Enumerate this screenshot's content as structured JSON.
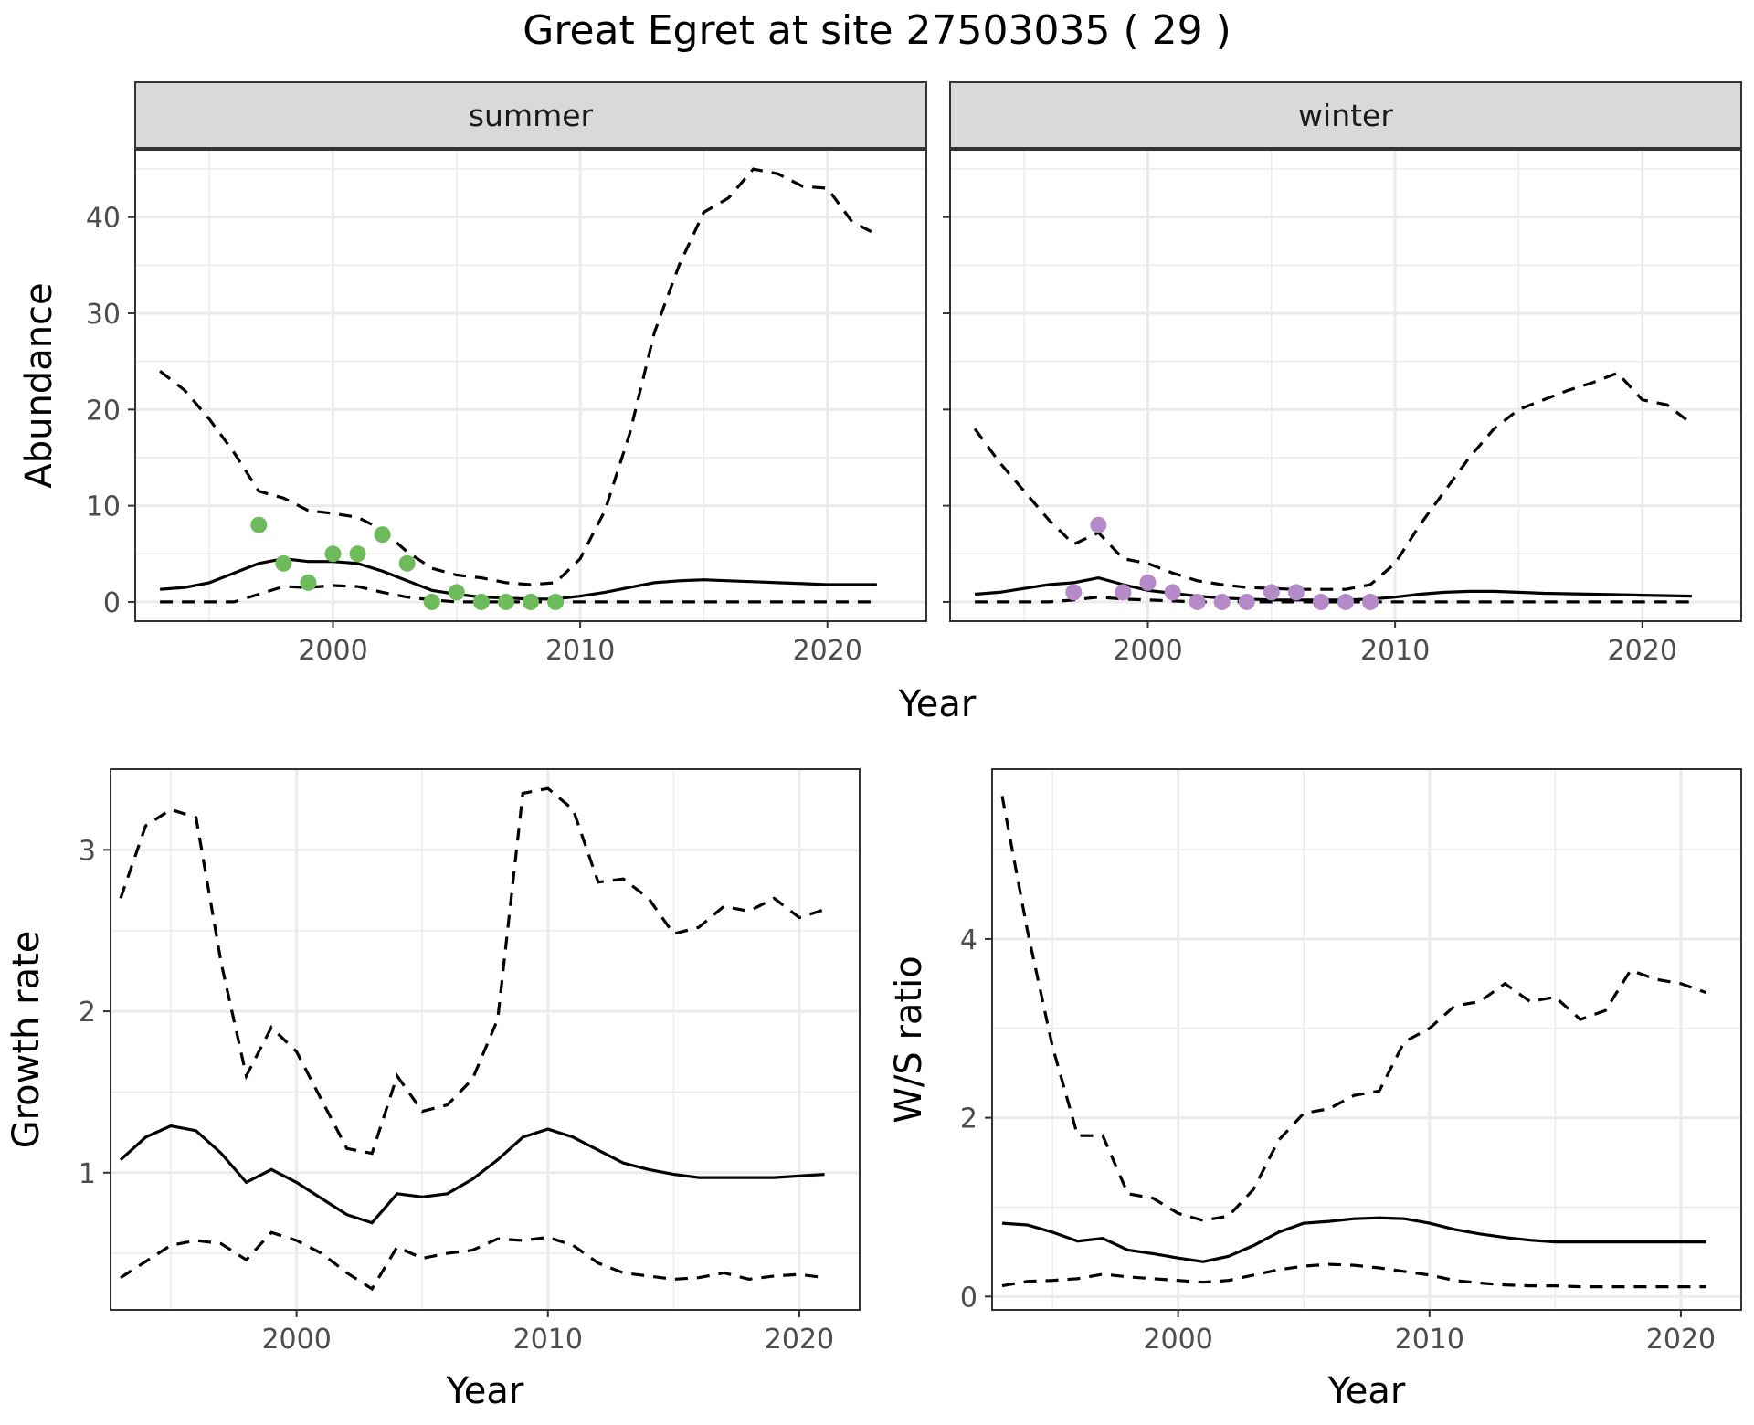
{
  "figure": {
    "title": "Great Egret at site 27503035 ( 29 )"
  },
  "colors": {
    "summer_points": "#6dbb5a",
    "winter_points": "#b48ac8",
    "line": "#000000",
    "strip": "#d9d9d9",
    "grid": "#ebebeb"
  },
  "chart_data": [
    {
      "type": "line",
      "facet": "summer",
      "xlabel": "Year",
      "ylabel": "Abundance",
      "xlim": [
        1992,
        2024
      ],
      "ylim": [
        -2,
        47
      ],
      "xticks": [
        2000,
        2010,
        2020
      ],
      "yticks": [
        0,
        10,
        20,
        30,
        40
      ],
      "x": [
        1993,
        1994,
        1995,
        1996,
        1997,
        1998,
        1999,
        2000,
        2001,
        2002,
        2003,
        2004,
        2005,
        2006,
        2007,
        2008,
        2009,
        2010,
        2011,
        2012,
        2013,
        2014,
        2015,
        2016,
        2017,
        2018,
        2019,
        2020,
        2021,
        2022
      ],
      "series": [
        {
          "role": "estimate",
          "style": "solid",
          "values": [
            1.3,
            1.5,
            2.0,
            3.0,
            4.0,
            4.5,
            4.2,
            4.2,
            4.0,
            3.2,
            2.2,
            1.2,
            0.8,
            0.5,
            0.4,
            0.3,
            0.3,
            0.6,
            1.0,
            1.5,
            2.0,
            2.2,
            2.3,
            2.2,
            2.1,
            2.0,
            1.9,
            1.8,
            1.8,
            1.8
          ]
        },
        {
          "role": "upper bound",
          "style": "dashed",
          "values": [
            24,
            22,
            19,
            15.5,
            11.5,
            10.8,
            9.5,
            9.2,
            8.8,
            7.5,
            5.2,
            3.5,
            2.8,
            2.5,
            2.0,
            1.8,
            2.0,
            4.5,
            9.5,
            17.5,
            28.0,
            35.0,
            40.5,
            42.0,
            45.0,
            44.5,
            43.2,
            43.0,
            39.5,
            38.2
          ]
        },
        {
          "role": "lower bound",
          "style": "dashed",
          "values": [
            0,
            0,
            0,
            0,
            0.8,
            1.6,
            1.5,
            1.7,
            1.6,
            1.0,
            0.5,
            0.2,
            0,
            0,
            0,
            0,
            0,
            0,
            0,
            0,
            0,
            0,
            0,
            0,
            0,
            0,
            0,
            0,
            0,
            0
          ]
        }
      ],
      "points": {
        "x": [
          1997,
          1998,
          1999,
          2000,
          2001,
          2002,
          2003,
          2004,
          2005,
          2006,
          2007,
          2008,
          2009
        ],
        "y": [
          8,
          4,
          2,
          5,
          5,
          7,
          4,
          0,
          1,
          0,
          0,
          0,
          0
        ]
      }
    },
    {
      "type": "line",
      "facet": "winter",
      "xlabel": "Year",
      "ylabel": "Abundance",
      "xlim": [
        1992,
        2024
      ],
      "ylim": [
        -2,
        47
      ],
      "xticks": [
        2000,
        2010,
        2020
      ],
      "yticks": [
        0,
        10,
        20,
        30,
        40
      ],
      "x": [
        1993,
        1994,
        1995,
        1996,
        1997,
        1998,
        1999,
        2000,
        2001,
        2002,
        2003,
        2004,
        2005,
        2006,
        2007,
        2008,
        2009,
        2010,
        2011,
        2012,
        2013,
        2014,
        2015,
        2016,
        2017,
        2018,
        2019,
        2020,
        2021,
        2022
      ],
      "series": [
        {
          "role": "estimate",
          "style": "solid",
          "values": [
            0.8,
            1.0,
            1.4,
            1.8,
            2.0,
            2.5,
            1.8,
            1.2,
            0.9,
            0.6,
            0.4,
            0.3,
            0.2,
            0.2,
            0.2,
            0.2,
            0.3,
            0.5,
            0.8,
            1.0,
            1.1,
            1.1,
            1.0,
            0.9,
            0.85,
            0.8,
            0.75,
            0.7,
            0.65,
            0.6
          ]
        },
        {
          "role": "upper bound",
          "style": "dashed",
          "values": [
            18,
            14.5,
            11.5,
            8.5,
            6.0,
            7.2,
            4.5,
            4.0,
            3.0,
            2.2,
            1.8,
            1.5,
            1.4,
            1.3,
            1.3,
            1.3,
            1.8,
            4.0,
            8.0,
            11.5,
            15.0,
            18.0,
            20.0,
            21.0,
            22.0,
            22.8,
            23.8,
            21.0,
            20.5,
            18.5
          ]
        },
        {
          "role": "lower bound",
          "style": "dashed",
          "values": [
            0,
            0,
            0,
            0,
            0.2,
            0.5,
            0.3,
            0.2,
            0.1,
            0,
            0,
            0,
            0,
            0,
            0,
            0,
            0,
            0,
            0,
            0,
            0,
            0,
            0,
            0,
            0,
            0,
            0,
            0,
            0,
            0
          ]
        }
      ],
      "points": {
        "x": [
          1997,
          1998,
          1999,
          2000,
          2001,
          2002,
          2003,
          2004,
          2005,
          2006,
          2007,
          2008,
          2009
        ],
        "y": [
          1,
          8,
          1,
          2,
          1,
          0,
          0,
          0,
          1,
          1,
          0,
          0,
          0
        ]
      }
    },
    {
      "type": "line",
      "xlabel": "Year",
      "ylabel": "Growth rate",
      "xlim": [
        1992.6,
        2022.4
      ],
      "ylim": [
        0.15,
        3.5
      ],
      "xticks": [
        2000,
        2010,
        2020
      ],
      "yticks": [
        1,
        2,
        3
      ],
      "x": [
        1993,
        1994,
        1995,
        1996,
        1997,
        1998,
        1999,
        2000,
        2001,
        2002,
        2003,
        2004,
        2005,
        2006,
        2007,
        2008,
        2009,
        2010,
        2011,
        2012,
        2013,
        2014,
        2015,
        2016,
        2017,
        2018,
        2019,
        2020,
        2021
      ],
      "series": [
        {
          "role": "estimate",
          "style": "solid",
          "values": [
            1.08,
            1.22,
            1.29,
            1.26,
            1.12,
            0.94,
            1.02,
            0.94,
            0.84,
            0.74,
            0.69,
            0.87,
            0.85,
            0.87,
            0.96,
            1.08,
            1.22,
            1.27,
            1.22,
            1.14,
            1.06,
            1.02,
            0.99,
            0.97,
            0.97,
            0.97,
            0.97,
            0.98,
            0.99
          ]
        },
        {
          "role": "upper bound",
          "style": "dashed",
          "values": [
            2.7,
            3.15,
            3.25,
            3.2,
            2.3,
            1.6,
            1.9,
            1.75,
            1.45,
            1.15,
            1.12,
            1.6,
            1.38,
            1.42,
            1.58,
            1.95,
            3.35,
            3.38,
            3.25,
            2.8,
            2.82,
            2.7,
            2.48,
            2.52,
            2.65,
            2.62,
            2.7,
            2.58,
            2.63
          ]
        },
        {
          "role": "lower bound",
          "style": "dashed",
          "values": [
            0.35,
            0.45,
            0.55,
            0.58,
            0.56,
            0.46,
            0.63,
            0.58,
            0.5,
            0.38,
            0.28,
            0.54,
            0.47,
            0.5,
            0.52,
            0.59,
            0.58,
            0.6,
            0.55,
            0.44,
            0.38,
            0.36,
            0.34,
            0.35,
            0.38,
            0.34,
            0.36,
            0.37,
            0.35
          ]
        }
      ]
    },
    {
      "type": "line",
      "xlabel": "Year",
      "ylabel": "W/S ratio",
      "xlim": [
        1992.6,
        2022.4
      ],
      "ylim": [
        -0.15,
        5.9
      ],
      "xticks": [
        2000,
        2010,
        2020
      ],
      "yticks": [
        0,
        2,
        4
      ],
      "x": [
        1993,
        1994,
        1995,
        1996,
        1997,
        1998,
        1999,
        2000,
        2001,
        2002,
        2003,
        2004,
        2005,
        2006,
        2007,
        2008,
        2009,
        2010,
        2011,
        2012,
        2013,
        2014,
        2015,
        2016,
        2017,
        2018,
        2019,
        2020,
        2021
      ],
      "series": [
        {
          "role": "estimate",
          "style": "solid",
          "values": [
            0.82,
            0.8,
            0.72,
            0.62,
            0.65,
            0.52,
            0.48,
            0.43,
            0.39,
            0.45,
            0.57,
            0.72,
            0.82,
            0.84,
            0.87,
            0.88,
            0.87,
            0.82,
            0.75,
            0.7,
            0.66,
            0.63,
            0.61,
            0.61,
            0.61,
            0.61,
            0.61,
            0.61,
            0.61
          ]
        },
        {
          "role": "upper bound",
          "style": "dashed",
          "values": [
            5.6,
            4.1,
            2.8,
            1.8,
            1.8,
            1.15,
            1.1,
            0.93,
            0.85,
            0.9,
            1.2,
            1.75,
            2.05,
            2.1,
            2.25,
            2.3,
            2.85,
            3.0,
            3.25,
            3.3,
            3.5,
            3.3,
            3.35,
            3.1,
            3.2,
            3.65,
            3.55,
            3.5,
            3.4
          ]
        },
        {
          "role": "lower bound",
          "style": "dashed",
          "values": [
            0.12,
            0.17,
            0.18,
            0.2,
            0.25,
            0.22,
            0.2,
            0.18,
            0.16,
            0.18,
            0.24,
            0.3,
            0.34,
            0.36,
            0.35,
            0.32,
            0.28,
            0.24,
            0.18,
            0.15,
            0.13,
            0.12,
            0.12,
            0.11,
            0.11,
            0.11,
            0.11,
            0.11,
            0.11
          ]
        }
      ]
    }
  ]
}
